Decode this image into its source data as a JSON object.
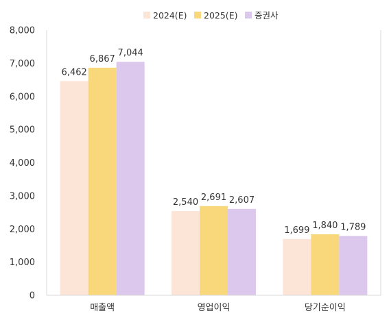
{
  "chart_data": {
    "type": "bar",
    "categories": [
      "매출액",
      "영업이익",
      "당기순이익"
    ],
    "series": [
      {
        "name": "2024(E)",
        "values": [
          6462,
          2540,
          1699
        ],
        "labels": [
          "6,462",
          "2,540",
          "1,699"
        ],
        "color": "#FCE4D6"
      },
      {
        "name": "2025(E)",
        "values": [
          6867,
          2691,
          1840
        ],
        "labels": [
          "6,867",
          "2,691",
          "1,840"
        ],
        "color": "#F8D87A"
      },
      {
        "name": "증권사",
        "values": [
          7044,
          2607,
          1789
        ],
        "labels": [
          "7,044",
          "2,607",
          "1,789"
        ],
        "color": "#DCC8EC"
      }
    ],
    "ylim": [
      0,
      8000
    ],
    "yticks": [
      0,
      1000,
      2000,
      3000,
      4000,
      5000,
      6000,
      7000,
      8000
    ],
    "ytick_labels": [
      "0",
      "1,000",
      "2,000",
      "3,000",
      "4,000",
      "5,000",
      "6,000",
      "7,000",
      "8,000"
    ],
    "legend_position": "top-center",
    "grid": false,
    "title": "",
    "xlabel": "",
    "ylabel": ""
  }
}
